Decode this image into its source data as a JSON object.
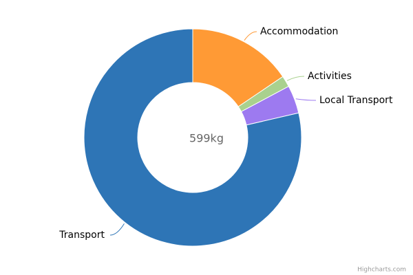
{
  "chart_data": {
    "type": "pie",
    "center_label": "599kg",
    "credit": "Highcharts.com",
    "categories": [
      "Transport",
      "Accommodation",
      "Activities",
      "Local Transport"
    ],
    "values": [
      471,
      93,
      10,
      25
    ],
    "colors": [
      "#2e75b6",
      "#ff9a35",
      "#a9d18e",
      "#9d7af0"
    ]
  }
}
